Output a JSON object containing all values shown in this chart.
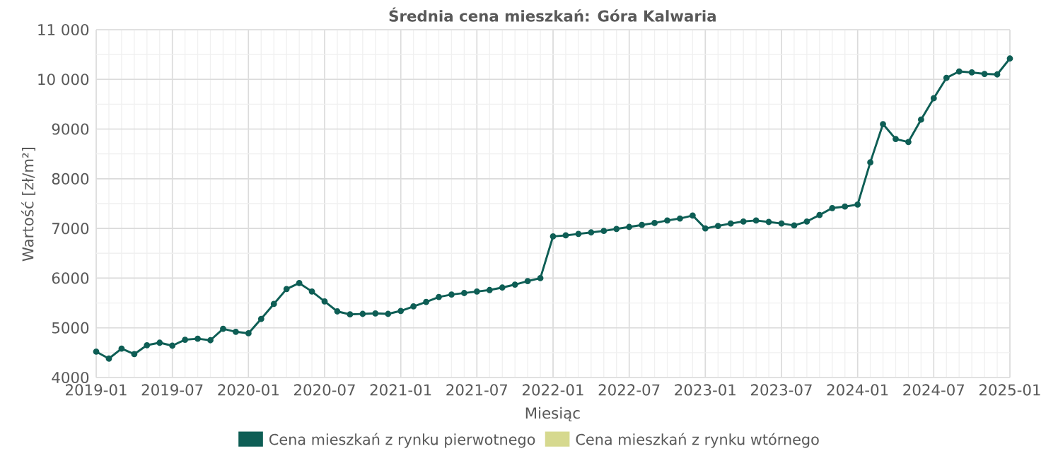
{
  "chart_data": {
    "type": "line",
    "title": "Średnia cena mieszkań: Góra Kalwaria",
    "xlabel": "Miesiąc",
    "ylabel": "Wartość [zł/m²]",
    "x": [
      "2019-01",
      "2019-02",
      "2019-03",
      "2019-04",
      "2019-05",
      "2019-06",
      "2019-07",
      "2019-08",
      "2019-09",
      "2019-10",
      "2019-11",
      "2019-12",
      "2020-01",
      "2020-02",
      "2020-03",
      "2020-04",
      "2020-05",
      "2020-06",
      "2020-07",
      "2020-08",
      "2020-09",
      "2020-10",
      "2020-11",
      "2020-12",
      "2021-01",
      "2021-02",
      "2021-03",
      "2021-04",
      "2021-05",
      "2021-06",
      "2021-07",
      "2021-08",
      "2021-09",
      "2021-10",
      "2021-11",
      "2021-12",
      "2022-01",
      "2022-02",
      "2022-03",
      "2022-04",
      "2022-05",
      "2022-06",
      "2022-07",
      "2022-08",
      "2022-09",
      "2022-10",
      "2022-11",
      "2022-12",
      "2023-01",
      "2023-02",
      "2023-03",
      "2023-04",
      "2023-05",
      "2023-06",
      "2023-07",
      "2023-08",
      "2023-09",
      "2023-10",
      "2023-11",
      "2023-12",
      "2024-01",
      "2024-02",
      "2024-03",
      "2024-04",
      "2024-05",
      "2024-06",
      "2024-07",
      "2024-08",
      "2024-09",
      "2024-10",
      "2024-11",
      "2024-12",
      "2025-01"
    ],
    "series": [
      {
        "name": "Cena mieszkań z rynku pierwotnego",
        "color": "#0e5e55",
        "values": [
          4520,
          4380,
          4580,
          4470,
          4650,
          4700,
          4640,
          4760,
          4780,
          4750,
          4980,
          4920,
          4890,
          5180,
          5480,
          5780,
          5900,
          5730,
          5530,
          5330,
          5270,
          5280,
          5290,
          5280,
          5340,
          5430,
          5520,
          5620,
          5670,
          5700,
          5730,
          5760,
          5810,
          5870,
          5940,
          6000,
          6840,
          6860,
          6890,
          6920,
          6950,
          6990,
          7030,
          7070,
          7110,
          7160,
          7200,
          7260,
          7000,
          7050,
          7100,
          7140,
          7160,
          7130,
          7100,
          7060,
          7140,
          7270,
          7410,
          7440,
          7480,
          8330,
          9100,
          8800,
          8740,
          9190,
          9620,
          10030,
          10160,
          10140,
          10110,
          10100,
          10420
        ]
      },
      {
        "name": "Cena mieszkań z rynku wtórnego",
        "color": "#d6d98f",
        "values": [
          null,
          null,
          null,
          null,
          null,
          null,
          null,
          null,
          null,
          null,
          null,
          null,
          null,
          null,
          null,
          null,
          null,
          null,
          null,
          null,
          null,
          null,
          null,
          null,
          null,
          null,
          null,
          null,
          null,
          null,
          null,
          null,
          null,
          null,
          null,
          null,
          null,
          null,
          null,
          null,
          null,
          null,
          null,
          null,
          null,
          null,
          null,
          null,
          null,
          null,
          null,
          null,
          null,
          null,
          null,
          null,
          null,
          null,
          null,
          null,
          null,
          null,
          null,
          null,
          null,
          null,
          null,
          null,
          null,
          null,
          null,
          null,
          null
        ]
      }
    ],
    "xlim": [
      "2019-01",
      "2025-01"
    ],
    "xticks": [
      "2019-01",
      "2019-07",
      "2020-01",
      "2020-07",
      "2021-01",
      "2021-07",
      "2022-01",
      "2022-07",
      "2023-01",
      "2023-07",
      "2024-01",
      "2024-07",
      "2025-01"
    ],
    "ylim": [
      4000,
      11000
    ],
    "yticks": [
      4000,
      5000,
      6000,
      7000,
      8000,
      9000,
      {
        "value": 10000,
        "label": "10 000"
      },
      {
        "value": 11000,
        "label": "11 000"
      }
    ],
    "grid": true,
    "legend": "bottom",
    "marker": "circle",
    "line_style": "solid"
  }
}
